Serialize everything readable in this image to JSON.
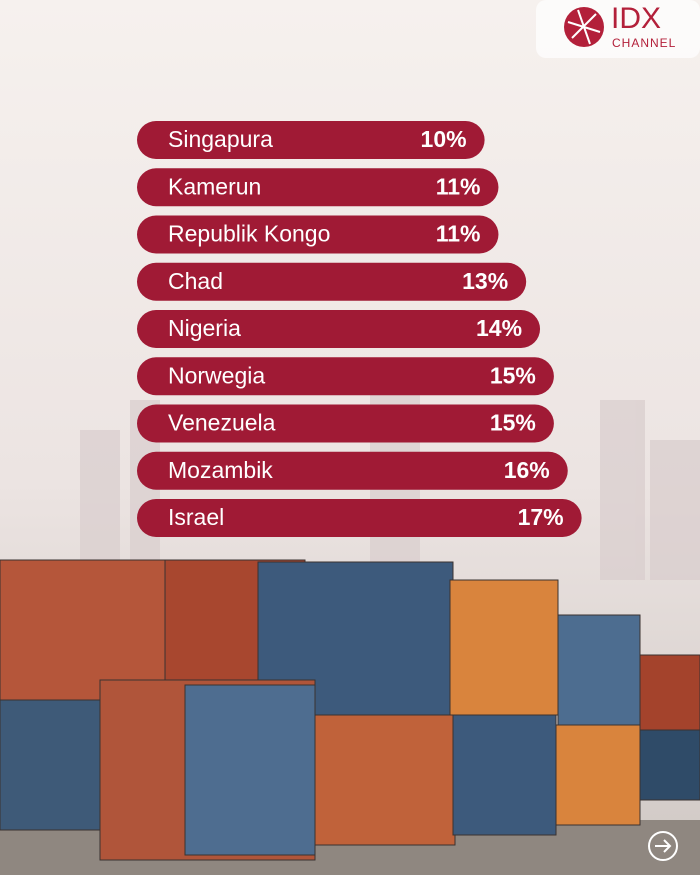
{
  "logo": {
    "name": "IDX",
    "sub": "CHANNEL"
  },
  "chart_data": {
    "type": "bar",
    "orientation": "horizontal",
    "color": "#a01a35",
    "categories": [
      "Singapura",
      "Kamerun",
      "Republik Kongo",
      "Chad",
      "Nigeria",
      "Norwegia",
      "Venezuela",
      "Mozambik",
      "Israel"
    ],
    "values": [
      10,
      11,
      11,
      13,
      14,
      15,
      15,
      16,
      17
    ],
    "value_labels": [
      "10%",
      "11%",
      "11%",
      "13%",
      "14%",
      "15%",
      "15%",
      "16%",
      "17%"
    ]
  }
}
